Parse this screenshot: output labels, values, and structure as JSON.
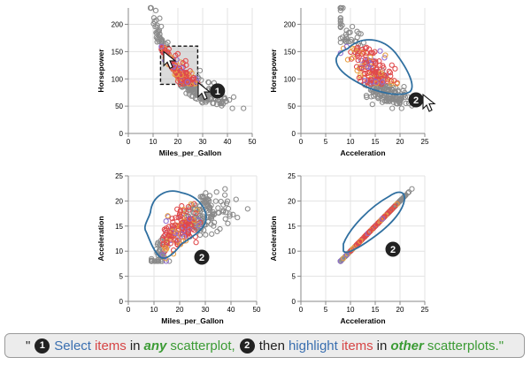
{
  "colors": {
    "point_default": "#8a8a8a",
    "point_selected": "#e0494b",
    "point_selected_alt": "#e8a040",
    "point_selected_alt2": "#8f6ad0",
    "lasso": "#2f6fa0",
    "brush_fill": "#bdbdbd",
    "badge": "#222222",
    "caption_blue": "#3a6fb0",
    "caption_red": "#d64545",
    "caption_green": "#3b9b34"
  },
  "chart_data": [
    {
      "type": "scatter",
      "xlabel": "Miles_per_Gallon",
      "ylabel": "Horsepower",
      "xlim": [
        0,
        50
      ],
      "ylim": [
        0,
        230
      ],
      "x_ticks": [
        "0",
        "10",
        "20",
        "30",
        "40",
        "50"
      ],
      "y_ticks": [
        "0",
        "50",
        "100",
        "150",
        "200"
      ],
      "selection": {
        "kind": "brush",
        "x_range": [
          13,
          28
        ],
        "y_range": [
          90,
          160
        ]
      },
      "badge": "1"
    },
    {
      "type": "scatter",
      "xlabel": "Acceleration",
      "ylabel": "Horsepower",
      "xlim": [
        0,
        25
      ],
      "ylim": [
        0,
        230
      ],
      "x_ticks": [
        "0",
        "5",
        "10",
        "15",
        "20",
        "25"
      ],
      "y_ticks": [
        "0",
        "50",
        "100",
        "150",
        "200"
      ],
      "selection": {
        "kind": "lasso"
      },
      "badge": "2"
    },
    {
      "type": "scatter",
      "xlabel": "Miles_per_Gallon",
      "ylabel": "Acceleration",
      "xlim": [
        0,
        50
      ],
      "ylim": [
        0,
        25
      ],
      "x_ticks": [
        "0",
        "10",
        "20",
        "30",
        "40",
        "50"
      ],
      "y_ticks": [
        "0",
        "5",
        "10",
        "15",
        "20",
        "25"
      ],
      "selection": {
        "kind": "lasso"
      },
      "badge": "2"
    },
    {
      "type": "scatter",
      "xlabel": "Acceleration",
      "ylabel": "Acceleration",
      "xlim": [
        0,
        25
      ],
      "ylim": [
        0,
        25
      ],
      "x_ticks": [
        "0",
        "5",
        "10",
        "15",
        "20",
        "25"
      ],
      "y_ticks": [
        "0",
        "5",
        "10",
        "15",
        "20",
        "25"
      ],
      "selection": {
        "kind": "lasso"
      },
      "badge": "2"
    }
  ],
  "caption": {
    "open_quote": "\"",
    "badge1": "1",
    "select": "Select",
    "items1": "items",
    "in1": "in",
    "any": "any",
    "scatterplot": "scatterplot,",
    "badge2": "2",
    "then": "then",
    "highlight": "highlight",
    "items2": "items",
    "in2": "in",
    "other": "other",
    "scatterplots": "scatterplots.\""
  }
}
